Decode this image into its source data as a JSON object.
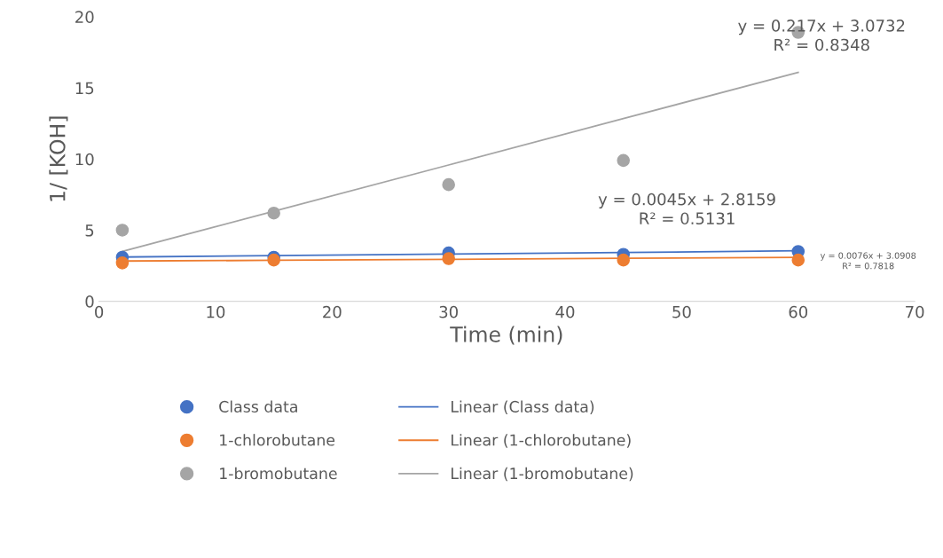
{
  "chart_data": {
    "type": "scatter",
    "xlabel": "Time (min)",
    "ylabel": "1/ [KOH]",
    "x": [
      2,
      15,
      30,
      45,
      60
    ],
    "xlim": [
      0,
      70
    ],
    "xticks": [
      0,
      10,
      20,
      30,
      40,
      50,
      60,
      70
    ],
    "ylim": [
      0,
      20
    ],
    "yticks": [
      0,
      5,
      10,
      15,
      20
    ],
    "grid": false,
    "legend": "bottom",
    "marker": "circle",
    "series": [
      {
        "name": "Class data",
        "color": "#4472c4",
        "values": [
          3.1,
          3.1,
          3.4,
          3.3,
          3.5
        ]
      },
      {
        "name": "1-chlorobutane",
        "color": "#ed7d31",
        "values": [
          2.7,
          2.9,
          3.0,
          2.9,
          2.9
        ]
      },
      {
        "name": "1-bromobutane",
        "color": "#a5a5a5",
        "values": [
          5.0,
          6.2,
          8.2,
          9.9,
          18.9
        ]
      },
      {
        "name": "Linear (Class data)",
        "type": "line",
        "marker": "none",
        "line_style": "solid",
        "color": "#4472c4",
        "values": [
          3.11,
          3.21,
          3.32,
          3.43,
          3.55
        ]
      },
      {
        "name": "Linear (1-chlorobutane)",
        "type": "line",
        "marker": "none",
        "line_style": "solid",
        "color": "#ed7d31",
        "values": [
          2.83,
          2.88,
          2.95,
          3.02,
          3.09
        ]
      },
      {
        "name": "Linear (1-bromobutane)",
        "type": "line",
        "marker": "none",
        "line_style": "solid",
        "color": "#a5a5a5",
        "values": [
          3.51,
          6.33,
          9.58,
          12.84,
          16.09
        ]
      }
    ],
    "annotations": [
      "y = 0.217x + 3.0732\nR² = 0.8348",
      "y = 0.0045x + 2.8159\nR² = 0.5131",
      "y = 0.0076x + 3.0908\nR² = 0.7818"
    ]
  }
}
